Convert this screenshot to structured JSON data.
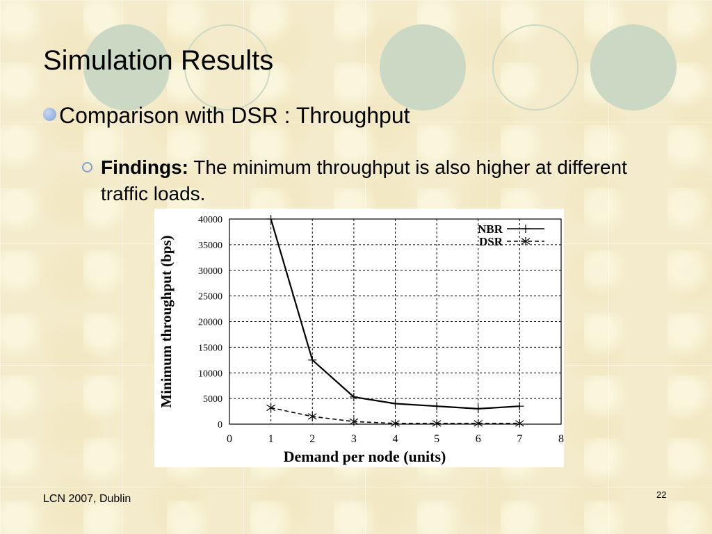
{
  "slide": {
    "title": "Simulation Results",
    "bullet1": "Comparison with DSR : Throughput",
    "bullet2_bold": "Findings:",
    "bullet2_text": "The minimum throughput is also higher at different traffic loads.",
    "footer_left": "LCN 2007, Dublin",
    "page_number": "22"
  },
  "chart_data": {
    "type": "line",
    "xlabel": "Demand per node (units)",
    "ylabel": "Minimum throughput (bps)",
    "xlim": [
      0,
      8
    ],
    "ylim": [
      0,
      40000
    ],
    "x_ticks": [
      "0",
      "1",
      "2",
      "3",
      "4",
      "5",
      "6",
      "7",
      "8"
    ],
    "y_ticks": [
      "0",
      "5000",
      "10000",
      "15000",
      "20000",
      "25000",
      "30000",
      "35000",
      "40000"
    ],
    "grid": true,
    "legend_position": "top-right",
    "x": [
      1,
      2,
      3,
      4,
      5,
      6,
      7
    ],
    "series": [
      {
        "name": "NBR",
        "marker": "+",
        "style": "solid",
        "values": [
          40000,
          12500,
          5300,
          4000,
          3500,
          3000,
          3500
        ]
      },
      {
        "name": "DSR",
        "marker": "x",
        "style": "dashed",
        "values": [
          3200,
          1500,
          500,
          150,
          150,
          150,
          150
        ]
      }
    ]
  }
}
